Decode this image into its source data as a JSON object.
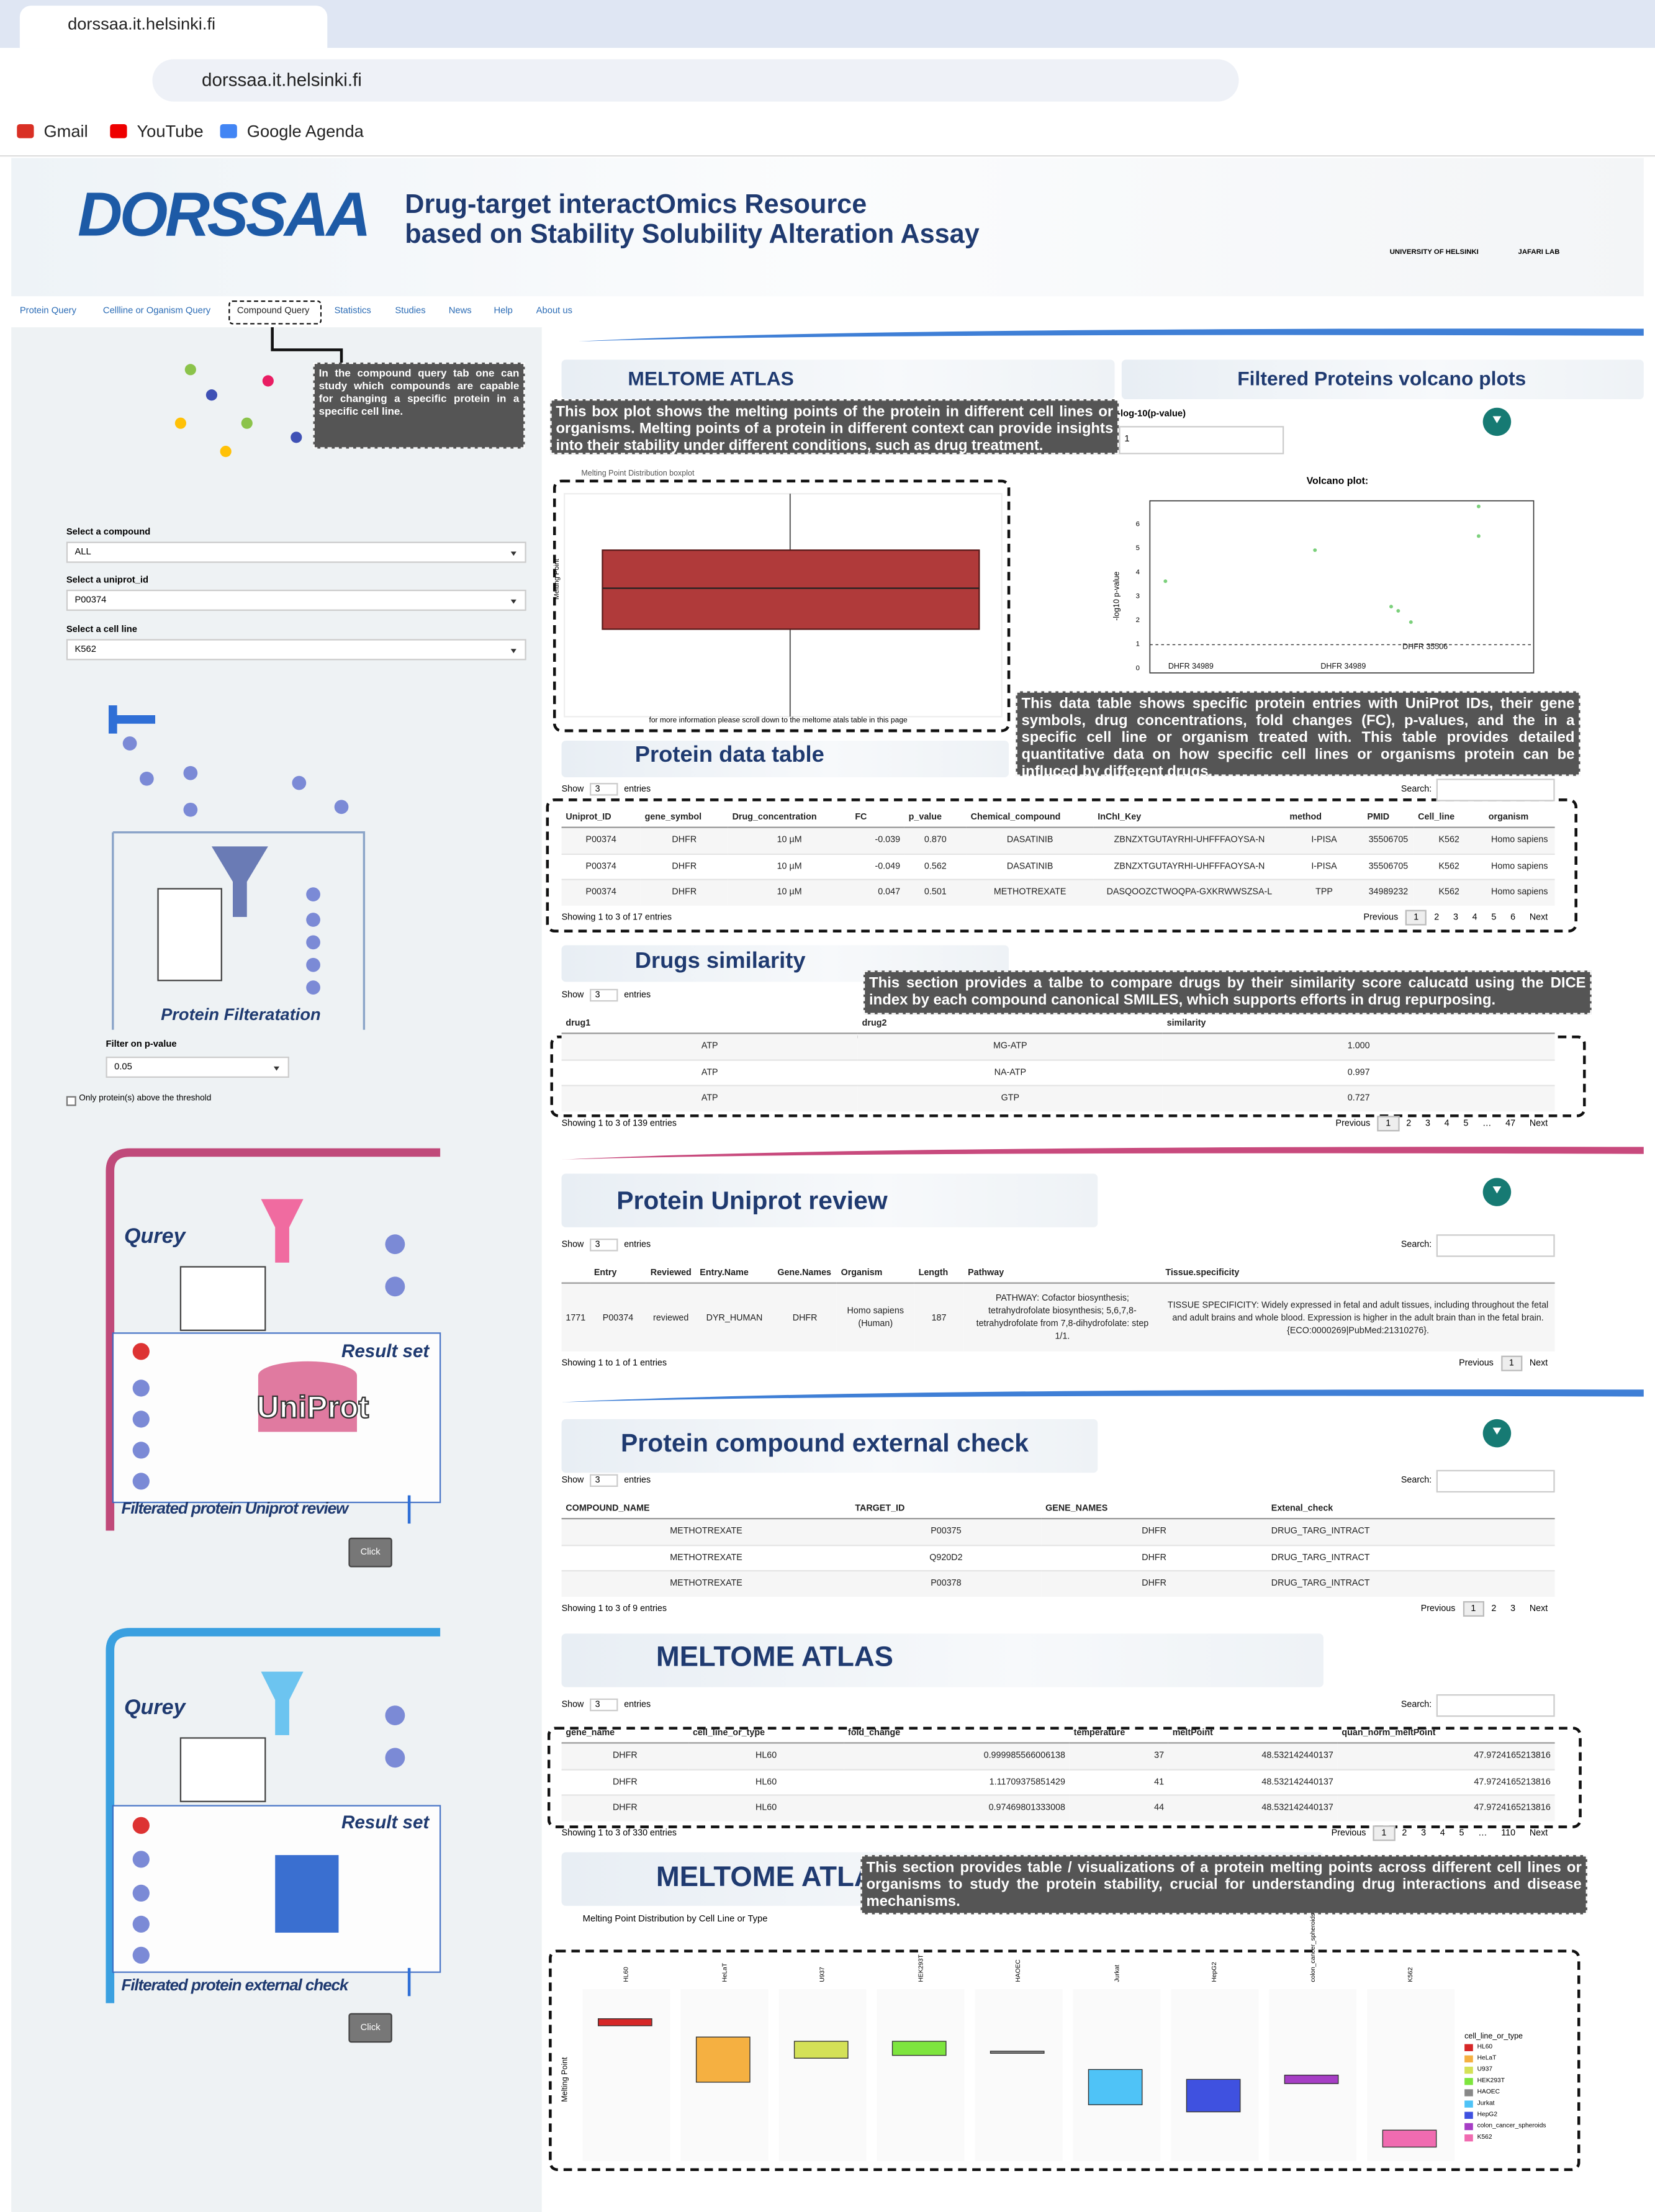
{
  "browser": {
    "tab_title": "dorssaa.it.helsinki.fi",
    "url": "dorssaa.it.helsinki.fi",
    "bookmarks": [
      "Gmail",
      "YouTube",
      "Google Agenda"
    ]
  },
  "header": {
    "logo": "DORSSAA",
    "title_line1": "Drug-target interactOmics Resource",
    "title_line2": "based on Stability Solubility Alteration Assay",
    "university": "UNIVERSITY OF HELSINKI",
    "lab": "JAFARI LAB"
  },
  "nav": [
    "Protein Query",
    "Cellline or Oganism Query",
    "Compound Query",
    "Statistics",
    "Studies",
    "News",
    "Help",
    "About us"
  ],
  "sidebar": {
    "tooltip": "In the compound query tab one can study which compounds are capable for changing a specific protein in a specific cell line.",
    "fields": [
      {
        "label": "Select a compound",
        "value": "ALL"
      },
      {
        "label": "Select a uniprot_id",
        "value": "P00374"
      },
      {
        "label": "Select a cell line",
        "value": "K562"
      }
    ],
    "filtration_title": "Protein Filteratation",
    "filter_label": "Filter on p-value",
    "filter_value": "0.05",
    "checkbox_label": "Only protein(s) above the threshold",
    "panel1": {
      "query": "Qurey",
      "result": "Result set",
      "uniprot": "UniProt",
      "caption": "Filterated protein Uniprot review",
      "button": "Click"
    },
    "panel2": {
      "query": "Qurey",
      "result": "Result set",
      "caption": "Filterated protein external check",
      "button": "Click"
    }
  },
  "overview": {
    "banner": "MELTOME ATLAS",
    "volcano_heading": "Filtered Proteins volcano plots",
    "annotation": "This box plot shows the melting points of the protein in different cell lines or organisms. Melting points of a protein in different context can provide insights into their stability under different conditions, such as drug treatment.",
    "boxplot_title": "Melting Point Distribution boxplot",
    "boxplot_ylabel": "Melting Point",
    "boxplot_note": "for more information please scroll down to the meltome atals table in this page",
    "pvalue_label": "-log-10(p-value)",
    "pvalue_value": "1",
    "volcano_title": "Volcano plot:",
    "volcano_ylabel": "-log10 p-value",
    "volcano_yticks": [
      "0",
      "1",
      "2",
      "3",
      "4",
      "5",
      "6"
    ],
    "volcano_labels": [
      "DHFR 34989",
      "DHFR 34989",
      "DHFR 35506"
    ]
  },
  "protein_table": {
    "title": "Protein data table",
    "annotation": "This data table shows specific protein entries with UniProt IDs, their gene symbols, drug concentrations, fold changes (FC), p-values, and the  in a specific cell line or organism treated with. This table provides detailed quantitative data on how specific cell lines or organisms protein can be influced by different drugs.",
    "show_label": "Show",
    "show_value": "3",
    "entries_label": "entries",
    "search_label": "Search:",
    "headers": [
      "Uniprot_ID",
      "gene_symbol",
      "Drug_concentration",
      "FC",
      "p_value",
      "Chemical_compound",
      "InChI_Key",
      "method",
      "PMID",
      "Cell_line",
      "organism"
    ],
    "rows": [
      [
        "P00374",
        "DHFR",
        "10 µM",
        "-0.039",
        "0.870",
        "DASATINIB",
        "ZBNZXTGUTAYRHI-UHFFFAOYSA-N",
        "I-PISA",
        "35506705",
        "K562",
        "Homo sapiens"
      ],
      [
        "P00374",
        "DHFR",
        "10 µM",
        "-0.049",
        "0.562",
        "DASATINIB",
        "ZBNZXTGUTAYRHI-UHFFFAOYSA-N",
        "I-PISA",
        "35506705",
        "K562",
        "Homo sapiens"
      ],
      [
        "P00374",
        "DHFR",
        "10 µM",
        "0.047",
        "0.501",
        "METHOTREXATE",
        "DASQOOZCTWOQPA-GXKRWWSZSA-L",
        "TPP",
        "34989232",
        "K562",
        "Homo sapiens"
      ]
    ],
    "info": "Showing 1 to 3 of 17 entries",
    "pages": [
      "Previous",
      "1",
      "2",
      "3",
      "4",
      "5",
      "6",
      "Next"
    ]
  },
  "drugs_table": {
    "title": "Drugs similarity",
    "annotation": "This section provides a talbe to compare drugs by their similarity score calucatd using the DICE index by each compound canonical SMILES, which supports efforts in drug repurposing.",
    "show_label": "Show",
    "show_value": "3",
    "entries_label": "entries",
    "headers": [
      "drug1",
      "drug2",
      "similarity"
    ],
    "rows": [
      [
        "ATP",
        "MG-ATP",
        "1.000"
      ],
      [
        "ATP",
        "NA-ATP",
        "0.997"
      ],
      [
        "ATP",
        "GTP",
        "0.727"
      ]
    ],
    "info": "Showing 1 to 3 of 139 entries",
    "pages": [
      "Previous",
      "1",
      "2",
      "3",
      "4",
      "5",
      "…",
      "47",
      "Next"
    ]
  },
  "uniprot_table": {
    "title": "Protein Uniprot review",
    "show_label": "Show",
    "show_value": "3",
    "entries_label": "entries",
    "search_label": "Search:",
    "headers": [
      "",
      "Entry",
      "Reviewed",
      "Entry.Name",
      "Gene.Names",
      "Organism",
      "Length",
      "Pathway",
      "Tissue.specificity"
    ],
    "rows": [
      [
        "1771",
        "P00374",
        "reviewed",
        "DYR_HUMAN",
        "DHFR",
        "Homo sapiens (Human)",
        "187",
        "PATHWAY: Cofactor biosynthesis; tetrahydrofolate biosynthesis; 5,6,7,8-tetrahydrofolate from 7,8-dihydrofolate: step 1/1.",
        "TISSUE SPECIFICITY: Widely expressed in fetal and adult tissues, including throughout the fetal and adult brains and whole blood. Expression is higher in the adult brain than in the fetal brain. {ECO:0000269|PubMed:21310276}."
      ]
    ],
    "info": "Showing 1 to 1 of 1 entries",
    "pages": [
      "Previous",
      "1",
      "Next"
    ]
  },
  "external_table": {
    "title": "Protein compound external check",
    "show_label": "Show",
    "show_value": "3",
    "entries_label": "entries",
    "search_label": "Search:",
    "headers": [
      "COMPOUND_NAME",
      "TARGET_ID",
      "GENE_NAMES",
      "Extenal_check"
    ],
    "rows": [
      [
        "METHOTREXATE",
        "P00375",
        "DHFR",
        "DRUG_TARG_INTRACT"
      ],
      [
        "METHOTREXATE",
        "Q920D2",
        "DHFR",
        "DRUG_TARG_INTRACT"
      ],
      [
        "METHOTREXATE",
        "P00378",
        "DHFR",
        "DRUG_TARG_INTRACT"
      ]
    ],
    "info": "Showing 1 to 3 of 9 entries",
    "pages": [
      "Previous",
      "1",
      "2",
      "3",
      "Next"
    ]
  },
  "meltome_table": {
    "title": "MELTOME ATLAS",
    "show_label": "Show",
    "show_value": "3",
    "entries_label": "entries",
    "search_label": "Search:",
    "headers": [
      "gene_name",
      "cell_line_or_type",
      "fold_change",
      "temperature",
      "meltPoint",
      "quan_norm_meltPoint"
    ],
    "rows": [
      [
        "DHFR",
        "HL60",
        "0.999985566006138",
        "37",
        "48.532142440137",
        "47.9724165213816"
      ],
      [
        "DHFR",
        "HL60",
        "1.11709375851429",
        "41",
        "48.532142440137",
        "47.9724165213816"
      ],
      [
        "DHFR",
        "HL60",
        "0.97469801333008",
        "44",
        "48.532142440137",
        "47.9724165213816"
      ]
    ],
    "info": "Showing 1 to 3 of 330 entries",
    "pages": [
      "Previous",
      "1",
      "2",
      "3",
      "4",
      "5",
      "…",
      "110",
      "Next"
    ]
  },
  "meltome_chart": {
    "banner": "MELTOME ATLAS",
    "annotation": "This section provides table / visualizations of a protein melting points across different cell lines or organisms to study the protein stability, crucial for understanding drug interactions and disease mechanisms.",
    "title": "Melting Point Distribution by Cell Line or Type",
    "ylabel": "Melting Point",
    "legend_title": "cell_line_or_type",
    "cell_lines": [
      "HL60",
      "HeLaT",
      "U937",
      "HEK293T",
      "HAOEC",
      "Jurkat",
      "HepG2",
      "colon_cancer_spheroids",
      "K562"
    ]
  }
}
